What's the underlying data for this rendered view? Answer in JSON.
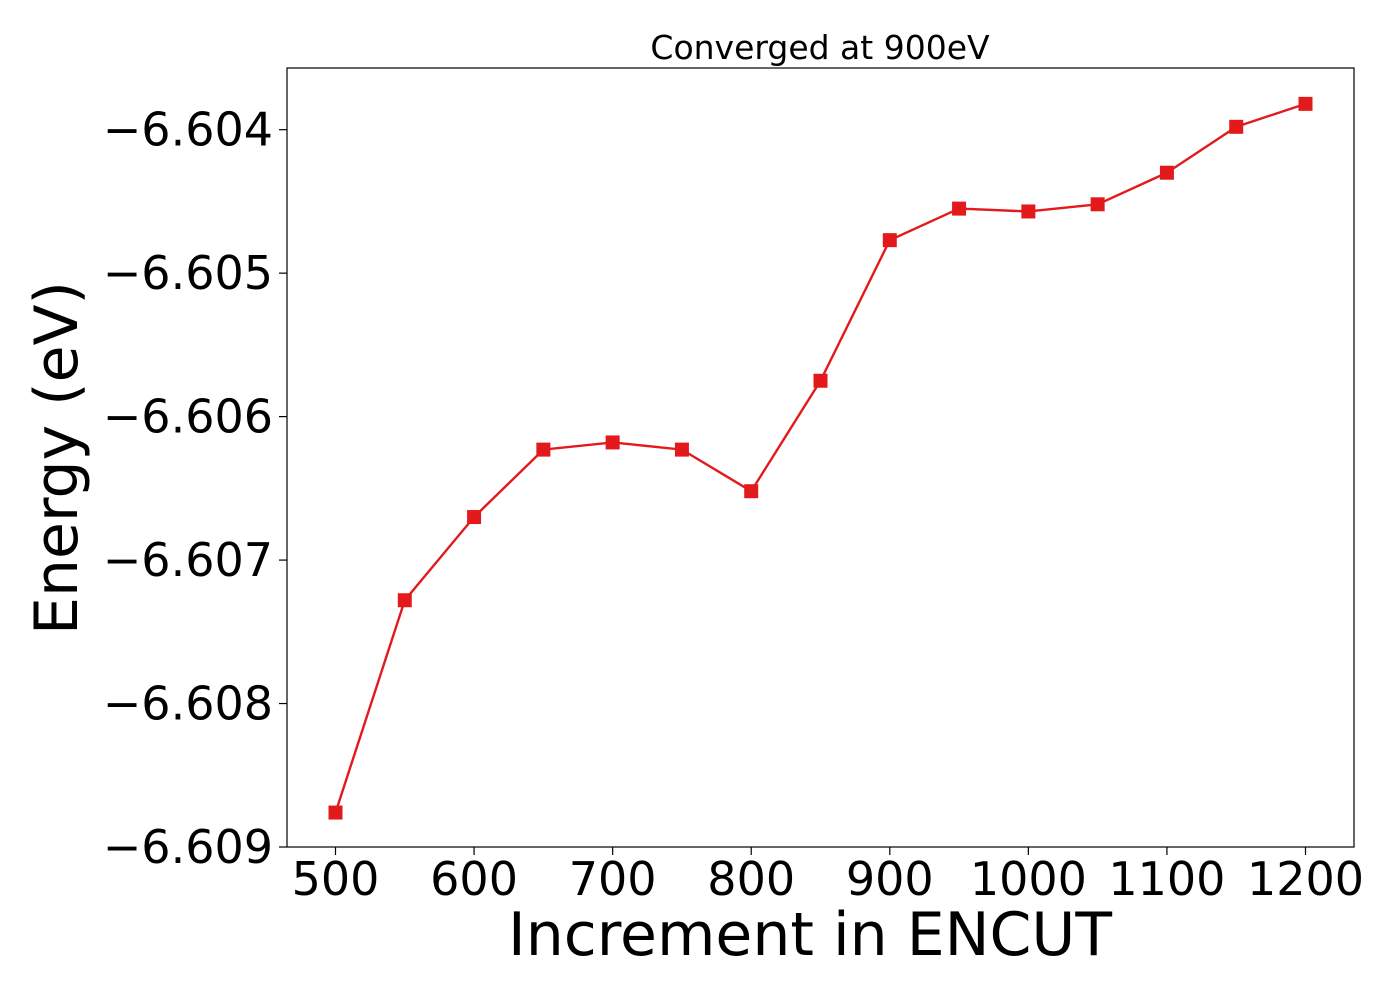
{
  "chart_data": {
    "type": "line",
    "title": "Converged at 900eV",
    "xlabel": "Increment in ENCUT",
    "ylabel": "Energy (eV)",
    "x": [
      500,
      550,
      600,
      650,
      700,
      750,
      800,
      850,
      900,
      950,
      1000,
      1050,
      1100,
      1150,
      1200
    ],
    "series": [
      {
        "values": [
          -6.60876,
          -6.60728,
          -6.6067,
          -6.60623,
          -6.60618,
          -6.60623,
          -6.60652,
          -6.60575,
          -6.60477,
          -6.60455,
          -6.60457,
          -6.60452,
          -6.6043,
          -6.60398,
          -6.60382
        ],
        "color": "#e31a1c",
        "marker": "square"
      }
    ],
    "xticks": [
      500,
      600,
      700,
      800,
      900,
      1000,
      1100,
      1200
    ],
    "xtick_labels": [
      "500",
      "600",
      "700",
      "800",
      "900",
      "1000",
      "1100",
      "1200"
    ],
    "yticks": [
      -6.604,
      -6.605,
      -6.606,
      -6.607,
      -6.608,
      -6.609
    ],
    "ytick_labels": [
      "−6.604",
      "−6.605",
      "−6.606",
      "−6.607",
      "−6.608",
      "−6.609"
    ],
    "xlim": [
      465,
      1235
    ],
    "ylim": [
      -6.609,
      -6.60357
    ],
    "grid": false
  }
}
